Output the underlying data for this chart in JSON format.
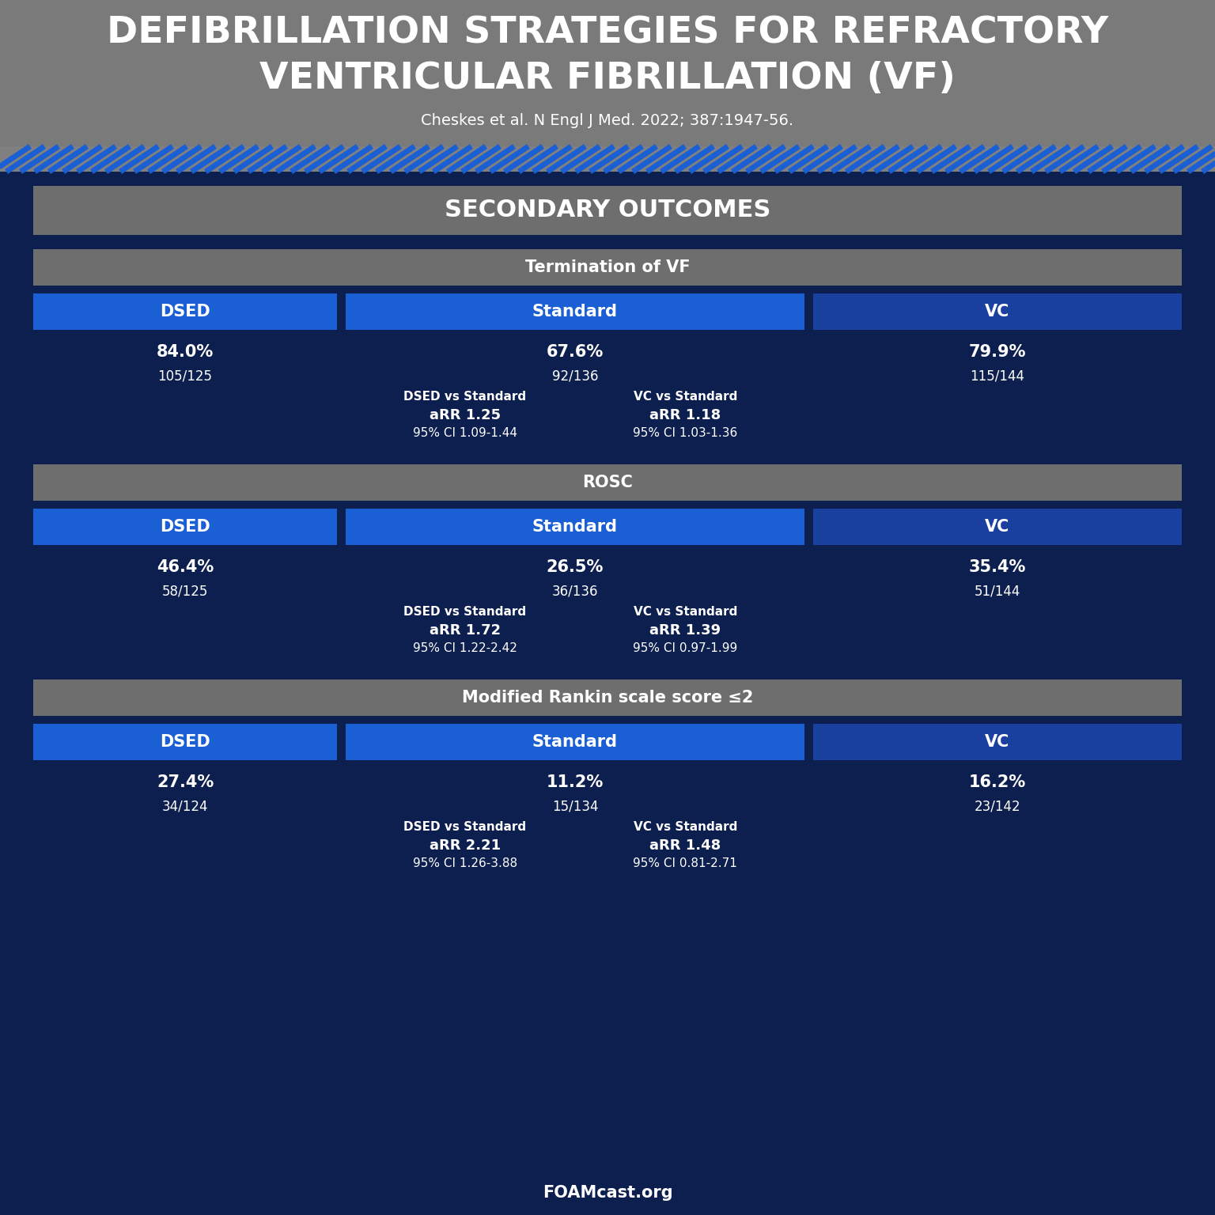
{
  "title_line1": "DEFIBRILLATION STRATEGIES FOR REFRACTORY",
  "title_line2": "VENTRICULAR FIBRILLATION (VF)",
  "subtitle": "Cheskes et al. N Engl J Med. 2022; 387:1947-56.",
  "footer": "FOAMcast.org",
  "bg_dark": "#0d1f4e",
  "bg_header": "#7a7a7a",
  "bg_blue": "#1b5fd4",
  "bg_dark_blue": "#1a40a0",
  "bg_section": "#6e6e6e",
  "subsections": [
    {
      "label": "Termination of VF",
      "cols": [
        {
          "header": "DSED",
          "pct": "84.0%",
          "ratio": "105/125"
        },
        {
          "header": "Standard",
          "pct": "67.6%",
          "ratio": "92/136",
          "cmp1_line1": "DSED vs Standard",
          "cmp1_line2": "aRR 1.25",
          "cmp1_line3": "95% CI 1.09-1.44",
          "cmp2_line1": "VC vs Standard",
          "cmp2_line2": "aRR 1.18",
          "cmp2_line3": "95% CI 1.03-1.36"
        },
        {
          "header": "VC",
          "pct": "79.9%",
          "ratio": "115/144"
        }
      ]
    },
    {
      "label": "ROSC",
      "cols": [
        {
          "header": "DSED",
          "pct": "46.4%",
          "ratio": "58/125"
        },
        {
          "header": "Standard",
          "pct": "26.5%",
          "ratio": "36/136",
          "cmp1_line1": "DSED vs Standard",
          "cmp1_line2": "aRR 1.72",
          "cmp1_line3": "95% CI 1.22-2.42",
          "cmp2_line1": "VC vs Standard",
          "cmp2_line2": "aRR 1.39",
          "cmp2_line3": "95% CI 0.97-1.99"
        },
        {
          "header": "VC",
          "pct": "35.4%",
          "ratio": "51/144"
        }
      ]
    },
    {
      "label": "Modified Rankin scale score ≤2",
      "cols": [
        {
          "header": "DSED",
          "pct": "27.4%",
          "ratio": "34/124"
        },
        {
          "header": "Standard",
          "pct": "11.2%",
          "ratio": "15/134",
          "cmp1_line1": "DSED vs Standard",
          "cmp1_line2": "aRR 2.21",
          "cmp1_line3": "95% CI 1.26-3.88",
          "cmp2_line1": "VC vs Standard",
          "cmp2_line2": "aRR 1.48",
          "cmp2_line3": "95% CI 0.81-2.71"
        },
        {
          "header": "VC",
          "pct": "16.2%",
          "ratio": "23/142"
        }
      ]
    }
  ]
}
